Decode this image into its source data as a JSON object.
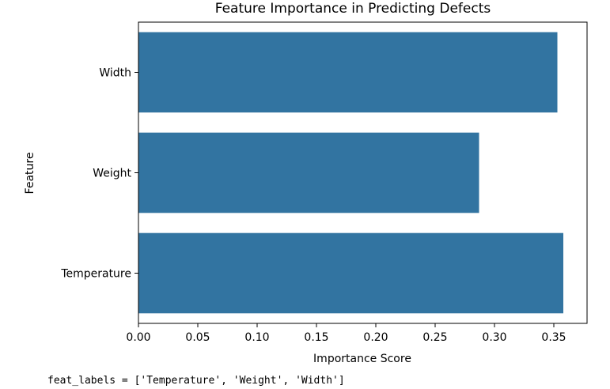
{
  "chart_data": {
    "type": "bar",
    "orientation": "horizontal",
    "title": "Feature Importance in Predicting Defects",
    "xlabel": "Importance Score",
    "ylabel": "Feature",
    "categories": [
      "Width",
      "Weight",
      "Temperature"
    ],
    "values": [
      0.353,
      0.287,
      0.358
    ],
    "xlim": [
      0,
      0.378
    ],
    "xticks": [
      "0.00",
      "0.05",
      "0.10",
      "0.15",
      "0.20",
      "0.25",
      "0.30",
      "0.35"
    ],
    "bar_color": "#3274a1",
    "grid": false,
    "legend": "none"
  },
  "caption_text": "feat_labels = ['Temperature', 'Weight', 'Width']"
}
